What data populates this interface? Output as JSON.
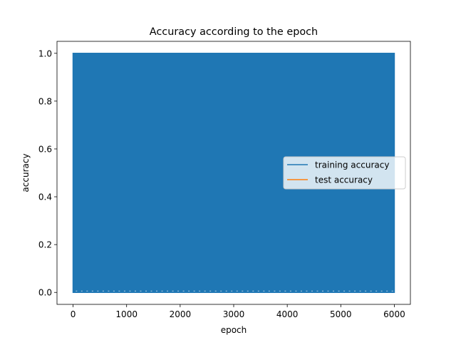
{
  "chart_data": {
    "type": "line",
    "title": "Accuracy according to the epoch",
    "xlabel": "epoch",
    "ylabel": "accuracy",
    "xlim": [
      -300,
      6300
    ],
    "ylim": [
      -0.05,
      1.05
    ],
    "xticks": [
      0,
      1000,
      2000,
      3000,
      4000,
      5000,
      6000
    ],
    "xtick_labels": [
      "0",
      "1000",
      "2000",
      "3000",
      "4000",
      "5000",
      "6000"
    ],
    "yticks": [
      0.0,
      0.2,
      0.4,
      0.6,
      0.8,
      1.0
    ],
    "ytick_labels": [
      "0.0",
      "0.2",
      "0.4",
      "0.6",
      "0.8",
      "1.0"
    ],
    "grid": false,
    "legend_position": "center-right",
    "series": [
      {
        "name": "training accuracy",
        "color": "#1f77b4",
        "x_range": [
          0,
          6000
        ],
        "oscillates_between": [
          0.0,
          1.0
        ],
        "x": [
          0,
          6000
        ],
        "y": [
          1.0,
          1.0
        ]
      },
      {
        "name": "test accuracy",
        "color": "#ff7f0e",
        "x": [],
        "y": []
      }
    ]
  }
}
